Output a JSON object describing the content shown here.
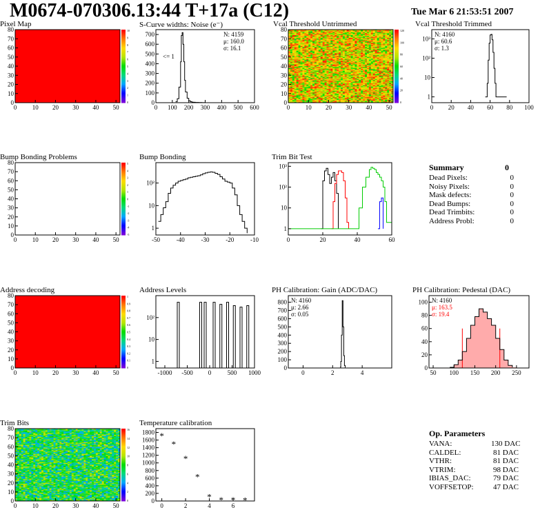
{
  "header": {
    "title": "M0674-070306.13:44 T+17a (C12)",
    "date": "Tue Mar  6 21:53:51 2007"
  },
  "colors": {
    "red": "#ff0000",
    "black": "#000000",
    "green": "#00cc00",
    "blue": "#0000ff",
    "hatch_red": "#ff6666"
  },
  "panels": [
    {
      "id": "p0",
      "title": "Pixel Map",
      "scale_labels": [
        "10",
        "9",
        "8",
        "7",
        "6",
        "5",
        "4",
        "3",
        "2",
        "1",
        "0"
      ]
    },
    {
      "id": "p1",
      "title": "S-Curve widths: Noise (e⁻)",
      "stats": [
        "N: 4159",
        "μ: 160.0",
        "σ: 16.1"
      ],
      "annotation": "<= 1"
    },
    {
      "id": "p2",
      "title": "Vcal Threshold Untrimmed",
      "scale_labels": [
        "120",
        "100",
        "80",
        "60",
        "40",
        "20",
        "0"
      ]
    },
    {
      "id": "p3",
      "title": "Vcal Threshold Trimmed",
      "stats": [
        "N: 4160",
        "μ: 60.6",
        "σ:  1.3"
      ]
    },
    {
      "id": "p4",
      "title": "Bump Bonding Problems",
      "scale_labels": [
        "5",
        "4",
        "3",
        "2",
        "1",
        "0",
        "-1",
        "-2",
        "-3",
        "-4",
        "-5"
      ]
    },
    {
      "id": "p5",
      "title": "Bump Bonding"
    },
    {
      "id": "p6",
      "title": "Trim Bit Test"
    },
    {
      "id": "p8",
      "title": "Address decoding",
      "scale_labels": [
        "1",
        "0.9",
        "0.8",
        "0.7",
        "0.6",
        "0.5",
        "0.4",
        "0.3",
        "0.2",
        "0.1",
        "0"
      ]
    },
    {
      "id": "p9",
      "title": "Address Levels"
    },
    {
      "id": "p10",
      "title": "PH Calibration: Gain (ADC/DAC)",
      "stats": [
        "N: 4160",
        "μ: 2.66",
        "σ: 0.05"
      ]
    },
    {
      "id": "p11",
      "title": "PH Calibration: Pedestal (DAC)",
      "stats": [
        "N: 4160",
        "μ: 163.5",
        "σ: 19.4"
      ]
    },
    {
      "id": "p12",
      "title": "Trim Bits",
      "scale_labels": [
        "16",
        "14",
        "12",
        "10",
        "8",
        "6",
        "4",
        "2",
        "0"
      ]
    },
    {
      "id": "p13",
      "title": "Temperature calibration"
    }
  ],
  "summary": {
    "title": "Summary",
    "value": "0",
    "rows": [
      [
        "Dead Pixels:",
        "0"
      ],
      [
        "Noisy Pixels:",
        "0"
      ],
      [
        "Mask defects:",
        "0"
      ],
      [
        "Dead Bumps:",
        "0"
      ],
      [
        "Dead Trimbits:",
        "0"
      ],
      [
        "Address Probl:",
        "0"
      ]
    ]
  },
  "op_parameters": {
    "title": "Op. Parameters",
    "rows": [
      [
        "VANA:",
        "130 DAC"
      ],
      [
        "CALDEL:",
        "81 DAC"
      ],
      [
        "VTHR:",
        "81 DAC"
      ],
      [
        "VTRIM:",
        "98 DAC"
      ],
      [
        "IBIAS_DAC:",
        "79 DAC"
      ],
      [
        "VOFFSETOP:",
        "47 DAC"
      ]
    ]
  },
  "chart_data": [
    {
      "id": "p0",
      "type": "heatmap",
      "title": "Pixel Map",
      "xlim": [
        0,
        52
      ],
      "ylim": [
        0,
        80
      ],
      "xticks": [
        "0",
        "10",
        "20",
        "30",
        "40",
        "50"
      ],
      "yticks": [
        "0",
        "10",
        "20",
        "30",
        "40",
        "50",
        "60",
        "70",
        "80"
      ],
      "fill": "uniform",
      "value": 10,
      "zlim": [
        0,
        10
      ]
    },
    {
      "id": "p1",
      "type": "line",
      "title": "S-Curve widths: Noise (e⁻)",
      "xlim": [
        0,
        600
      ],
      "ylim": [
        0,
        750
      ],
      "xticks": [
        "0",
        "100",
        "200",
        "300",
        "400",
        "500",
        "600"
      ],
      "yticks": [
        "0",
        "100",
        "200",
        "300",
        "400",
        "500",
        "600",
        "700"
      ],
      "x": [
        120,
        130,
        140,
        150,
        155,
        160,
        165,
        170,
        175,
        180,
        190,
        200,
        210,
        220,
        230,
        240,
        260,
        280,
        300
      ],
      "y": [
        10,
        40,
        160,
        420,
        690,
        720,
        600,
        420,
        230,
        110,
        45,
        20,
        10,
        5,
        4,
        3,
        2,
        1,
        0
      ]
    },
    {
      "id": "p2",
      "type": "heatmap",
      "title": "Vcal Threshold Untrimmed",
      "xlim": [
        0,
        52
      ],
      "ylim": [
        0,
        80
      ],
      "xticks": [
        "0",
        "10",
        "20",
        "30",
        "40",
        "50"
      ],
      "yticks": [
        "0",
        "10",
        "20",
        "30",
        "40",
        "50",
        "60",
        "70",
        "80"
      ],
      "fill": "noise",
      "zlim": [
        0,
        130
      ]
    },
    {
      "id": "p3",
      "type": "line",
      "title": "Vcal Threshold Trimmed",
      "log": true,
      "xlim": [
        0,
        100
      ],
      "ylim": [
        0.5,
        3000
      ],
      "xticks": [
        "0",
        "20",
        "40",
        "60",
        "80",
        "100"
      ],
      "yticks": [
        "1",
        "10",
        "10²",
        "10³"
      ],
      "x": [
        55,
        57,
        58,
        59,
        60,
        61,
        62,
        63,
        64,
        65,
        66,
        76,
        77
      ],
      "y": [
        1,
        5,
        80,
        600,
        1600,
        1700,
        900,
        200,
        30,
        5,
        1,
        1,
        1
      ]
    },
    {
      "id": "p4",
      "type": "heatmap",
      "title": "Bump Bonding Problems",
      "xlim": [
        0,
        52
      ],
      "ylim": [
        0,
        80
      ],
      "xticks": [
        "0",
        "10",
        "20",
        "30",
        "40",
        "50"
      ],
      "yticks": [
        "0",
        "10",
        "20",
        "30",
        "40",
        "50",
        "60",
        "70",
        "80"
      ],
      "fill": "empty",
      "zlim": [
        -5,
        5
      ]
    },
    {
      "id": "p5",
      "type": "line",
      "title": "Bump Bonding",
      "log": true,
      "xlim": [
        -50,
        -10
      ],
      "ylim": [
        0.5,
        800
      ],
      "xticks": [
        "-50",
        "-40",
        "-30",
        "-20",
        "-10"
      ],
      "yticks": [
        "1",
        "10",
        "10²"
      ],
      "x": [
        -49,
        -48,
        -47,
        -46,
        -45,
        -44,
        -43,
        -42,
        -41,
        -40,
        -39,
        -38,
        -37,
        -36,
        -35,
        -34,
        -33,
        -32,
        -31,
        -30,
        -29,
        -28,
        -27,
        -26,
        -25,
        -24,
        -23,
        -22,
        -21,
        -20,
        -19,
        -18,
        -17,
        -16,
        -15,
        -14,
        -13
      ],
      "y": [
        2,
        4,
        8,
        15,
        35,
        60,
        80,
        100,
        120,
        130,
        140,
        150,
        170,
        180,
        190,
        200,
        210,
        230,
        260,
        280,
        300,
        310,
        300,
        270,
        240,
        190,
        150,
        120,
        110,
        100,
        60,
        30,
        10,
        4,
        2,
        1,
        0.6
      ]
    },
    {
      "id": "p6",
      "type": "line",
      "title": "Trim Bit Test",
      "log": true,
      "xlim": [
        0,
        60
      ],
      "ylim": [
        0.5,
        1500
      ],
      "xticks": [
        "0",
        "20",
        "40",
        "60"
      ],
      "yticks": [
        "1",
        "10",
        "10²",
        "10³"
      ],
      "series": [
        {
          "color": "black",
          "x": [
            19,
            20,
            21,
            22,
            23,
            24,
            25,
            26,
            27,
            28,
            29
          ],
          "y": [
            1,
            200,
            600,
            800,
            400,
            150,
            300,
            500,
            200,
            50,
            1
          ]
        },
        {
          "color": "red",
          "x": [
            25,
            26,
            27,
            28,
            29,
            30,
            31,
            32,
            33,
            34,
            35
          ],
          "y": [
            1,
            20,
            150,
            400,
            600,
            600,
            500,
            200,
            30,
            2,
            1
          ]
        },
        {
          "color": "green",
          "x": [
            0,
            38,
            41,
            43,
            45,
            47,
            48,
            49,
            50,
            51,
            52,
            53,
            54,
            55,
            56,
            57,
            60
          ],
          "y": [
            1,
            1,
            10,
            100,
            300,
            700,
            900,
            800,
            700,
            500,
            400,
            300,
            200,
            100,
            20,
            2,
            1
          ]
        },
        {
          "color": "blue",
          "x": [
            52,
            53,
            54,
            55
          ],
          "y": [
            1,
            20,
            30,
            1
          ]
        }
      ]
    },
    {
      "id": "p8",
      "type": "heatmap",
      "title": "Address decoding",
      "xlim": [
        0,
        52
      ],
      "ylim": [
        0,
        80
      ],
      "xticks": [
        "0",
        "10",
        "20",
        "30",
        "40",
        "50"
      ],
      "yticks": [
        "0",
        "10",
        "20",
        "30",
        "40",
        "50",
        "60",
        "70",
        "80"
      ],
      "fill": "uniform",
      "value": 1,
      "zlim": [
        0,
        1
      ]
    },
    {
      "id": "p9",
      "type": "line",
      "title": "Address Levels",
      "log": true,
      "xlim": [
        -1200,
        1000
      ],
      "ylim": [
        0.5,
        1000
      ],
      "xticks": [
        "-1000",
        "-500",
        "0",
        "500",
        "1000"
      ],
      "yticks": [
        "1",
        "10",
        "10²"
      ],
      "peaks": [
        [
          -700,
          500
        ],
        [
          -200,
          500
        ],
        [
          -100,
          500
        ],
        [
          100,
          500
        ],
        [
          250,
          400
        ],
        [
          400,
          500
        ],
        [
          550,
          350
        ],
        [
          700,
          300
        ],
        [
          850,
          350
        ]
      ]
    },
    {
      "id": "p10",
      "type": "line",
      "title": "PH Calibration: Gain (ADC/DAC)",
      "xlim": [
        -1,
        6
      ],
      "ylim": [
        0,
        880
      ],
      "xticks": [
        "0",
        "2",
        "4"
      ],
      "yticks": [
        "0",
        "100",
        "200",
        "300",
        "400",
        "500",
        "600",
        "700",
        "800"
      ],
      "x": [
        2.5,
        2.55,
        2.6,
        2.65,
        2.7,
        2.75,
        2.8,
        2.85
      ],
      "y": [
        10,
        80,
        400,
        820,
        500,
        150,
        30,
        5
      ]
    },
    {
      "id": "p11",
      "type": "line",
      "title": "PH Calibration: Pedestal (DAC)",
      "xlim": [
        40,
        280
      ],
      "ylim": [
        0,
        110
      ],
      "xticks": [
        "50",
        "100",
        "150",
        "200",
        "250"
      ],
      "yticks": [
        "0",
        "20",
        "40",
        "60",
        "80",
        "100"
      ],
      "x": [
        90,
        100,
        110,
        120,
        130,
        140,
        150,
        160,
        170,
        180,
        190,
        200,
        210,
        220,
        230,
        240
      ],
      "y": [
        1,
        5,
        12,
        25,
        45,
        65,
        78,
        90,
        85,
        75,
        65,
        45,
        28,
        12,
        4,
        1
      ]
    },
    {
      "id": "p12",
      "type": "heatmap",
      "title": "Trim Bits",
      "xlim": [
        0,
        52
      ],
      "ylim": [
        0,
        80
      ],
      "xticks": [
        "0",
        "10",
        "20",
        "30",
        "40",
        "50"
      ],
      "yticks": [
        "0",
        "10",
        "20",
        "30",
        "40",
        "50",
        "60",
        "70",
        "80"
      ],
      "fill": "noise-green",
      "zlim": [
        0,
        16
      ]
    },
    {
      "id": "p13",
      "type": "scatter",
      "title": "Temperature calibration",
      "xlim": [
        -0.5,
        7.8
      ],
      "ylim": [
        0,
        1900
      ],
      "xticks": [
        "0",
        "2",
        "4",
        "6"
      ],
      "yticks": [
        "0",
        "200",
        "400",
        "600",
        "800",
        "1000",
        "1200",
        "1400",
        "1600",
        "1800"
      ],
      "x": [
        0,
        1,
        2,
        3,
        4,
        5,
        6,
        7
      ],
      "y": [
        1720,
        1500,
        1120,
        640,
        120,
        40,
        35,
        30
      ]
    }
  ]
}
